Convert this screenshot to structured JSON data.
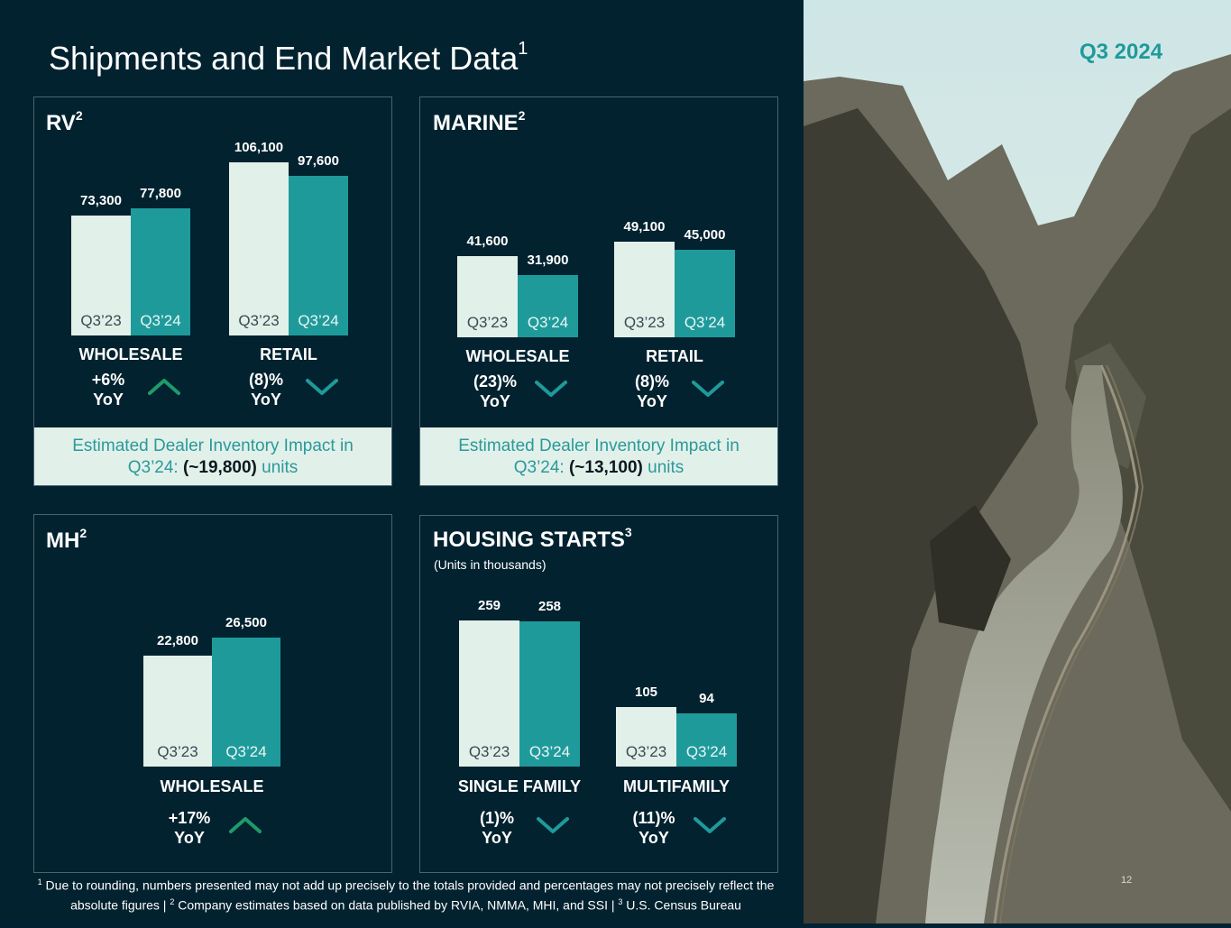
{
  "title": "Shipments and End Market Data",
  "title_sup": "1",
  "badge": "Q3 2024",
  "page_number": "12",
  "colors": {
    "background": "#02222f",
    "prior": "#e2f0ea",
    "current": "#1f9a9a",
    "up_arrow": "#1f9a6a",
    "down_arrow": "#1f9a9a"
  },
  "panels": {
    "rv": {
      "title": "RV",
      "sup": "2",
      "dealer_line1": "Estimated Dealer Inventory Impact in",
      "dealer_prefix": "Q3’24: ",
      "dealer_value": "(~19,800)",
      "dealer_suffix": " units"
    },
    "marine": {
      "title": "MARINE",
      "sup": "2",
      "dealer_line1": "Estimated Dealer Inventory Impact in",
      "dealer_prefix": "Q3’24: ",
      "dealer_value": "(~13,100)",
      "dealer_suffix": " units"
    },
    "mh": {
      "title": "MH",
      "sup": "2"
    },
    "housing": {
      "title": "HOUSING STARTS",
      "sup": "3",
      "note": "(Units in thousands)"
    }
  },
  "chart_data": [
    {
      "type": "bar",
      "panel": "rv",
      "categories": [
        "WHOLESALE",
        "RETAIL"
      ],
      "bar_labels": [
        "Q3’23",
        "Q3’24"
      ],
      "values": [
        [
          73300,
          77800
        ],
        [
          106100,
          97600
        ]
      ],
      "value_labels": [
        [
          "73,300",
          "77,800"
        ],
        [
          "106,100",
          "97,600"
        ]
      ],
      "yoy": [
        {
          "text": "+6%",
          "unit": "YoY",
          "direction": "up"
        },
        {
          "text": "(8)%",
          "unit": "YoY",
          "direction": "down"
        }
      ]
    },
    {
      "type": "bar",
      "panel": "marine",
      "categories": [
        "WHOLESALE",
        "RETAIL"
      ],
      "bar_labels": [
        "Q3’23",
        "Q3’24"
      ],
      "values": [
        [
          41600,
          31900
        ],
        [
          49100,
          45000
        ]
      ],
      "value_labels": [
        [
          "41,600",
          "31,900"
        ],
        [
          "49,100",
          "45,000"
        ]
      ],
      "yoy": [
        {
          "text": "(23)%",
          "unit": "YoY",
          "direction": "down"
        },
        {
          "text": "(8)%",
          "unit": "YoY",
          "direction": "down"
        }
      ]
    },
    {
      "type": "bar",
      "panel": "mh",
      "categories": [
        "WHOLESALE"
      ],
      "bar_labels": [
        "Q3’23",
        "Q3’24"
      ],
      "values": [
        [
          22800,
          26500
        ]
      ],
      "value_labels": [
        [
          "22,800",
          "26,500"
        ]
      ],
      "yoy": [
        {
          "text": "+17%",
          "unit": "YoY",
          "direction": "up"
        }
      ]
    },
    {
      "type": "bar",
      "panel": "housing",
      "categories": [
        "SINGLE FAMILY",
        "MULTIFAMILY"
      ],
      "bar_labels": [
        "Q3’23",
        "Q3’24"
      ],
      "values": [
        [
          259,
          258
        ],
        [
          105,
          94
        ]
      ],
      "value_labels": [
        [
          "259",
          "258"
        ],
        [
          "105",
          "94"
        ]
      ],
      "yoy": [
        {
          "text": "(1)%",
          "unit": "YoY",
          "direction": "down"
        },
        {
          "text": "(11)%",
          "unit": "YoY",
          "direction": "down"
        }
      ]
    }
  ],
  "footnote": {
    "s1": "1",
    "t1": " Due to rounding, numbers presented may not add up precisely to the totals provided and percentages may not precisely reflect the absolute figures | ",
    "s2": "2",
    "t2": " Company estimates based on data published by RVIA, NMMA, MHI, and SSI | ",
    "s3": "3",
    "t3": " U.S. Census Bureau"
  }
}
